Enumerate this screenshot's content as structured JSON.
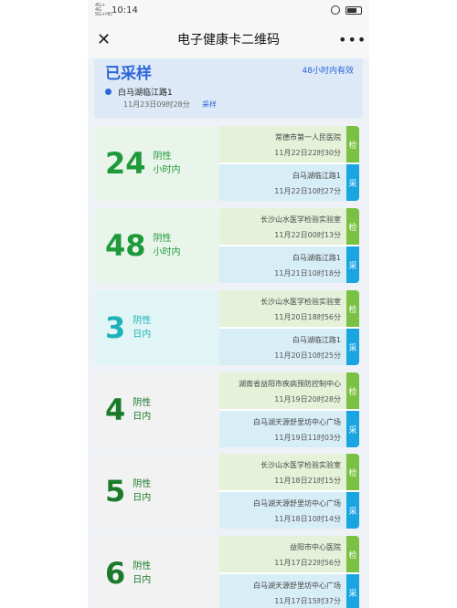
{
  "status_bar": {
    "network": "4G+ 4G 5G+HD",
    "time": "10:14"
  },
  "nav": {
    "close_icon": "close-icon",
    "title": "电子健康卡二维码",
    "more_icon": "more-icon",
    "more_text": "•••"
  },
  "sample": {
    "status": "已采样",
    "validity": "48小时内有效",
    "location": "白马湖临江路1",
    "time": "11月23日09时28分",
    "tag": "采样"
  },
  "groups": [
    {
      "number": "24",
      "line1": "阴性",
      "line2": "小时内",
      "rows": [
        {
          "place": "常德市第一人民医院",
          "datetime": "11月22日22时30分",
          "badge": "检",
          "kind": "test"
        },
        {
          "place": "白马湖临江路1",
          "datetime": "11月22日10时27分",
          "badge": "采",
          "kind": "collect"
        }
      ]
    },
    {
      "number": "48",
      "line1": "阴性",
      "line2": "小时内",
      "rows": [
        {
          "place": "长沙山水医学检验实验室",
          "datetime": "11月22日00时13分",
          "badge": "检",
          "kind": "test"
        },
        {
          "place": "白马湖临江路1",
          "datetime": "11月21日10时18分",
          "badge": "采",
          "kind": "collect"
        }
      ]
    },
    {
      "number": "3",
      "line1": "阴性",
      "line2": "日内",
      "rows": [
        {
          "place": "长沙山水医学检验实验室",
          "datetime": "11月20日18时56分",
          "badge": "检",
          "kind": "test"
        },
        {
          "place": "白马湖临江路1",
          "datetime": "11月20日10时25分",
          "badge": "采",
          "kind": "collect"
        }
      ]
    },
    {
      "number": "4",
      "line1": "阴性",
      "line2": "日内",
      "rows": [
        {
          "place": "湖南省益阳市疾病预防控制中心",
          "datetime": "11月19日20时28分",
          "badge": "检",
          "kind": "test"
        },
        {
          "place": "白马湖天源舒里坊中心广场",
          "datetime": "11月19日11时03分",
          "badge": "采",
          "kind": "collect"
        }
      ]
    },
    {
      "number": "5",
      "line1": "阴性",
      "line2": "日内",
      "rows": [
        {
          "place": "长沙山水医学检验实验室",
          "datetime": "11月18日21时15分",
          "badge": "检",
          "kind": "test"
        },
        {
          "place": "白马湖天源舒里坊中心广场",
          "datetime": "11月18日10时14分",
          "badge": "采",
          "kind": "collect"
        }
      ]
    },
    {
      "number": "6",
      "line1": "阴性",
      "line2": "日内",
      "rows": [
        {
          "place": "益阳市中心医院",
          "datetime": "11月17日22时56分",
          "badge": "检",
          "kind": "test"
        },
        {
          "place": "白马湖天源舒里坊中心广场",
          "datetime": "11月17日15时37分",
          "badge": "采",
          "kind": "collect"
        }
      ]
    }
  ],
  "colors": {
    "green": "#1e9a3a",
    "teal": "#1bb2b8",
    "test_badge": "#7ac143",
    "collect_badge": "#1aa5e0",
    "accent": "#2c66d8"
  }
}
